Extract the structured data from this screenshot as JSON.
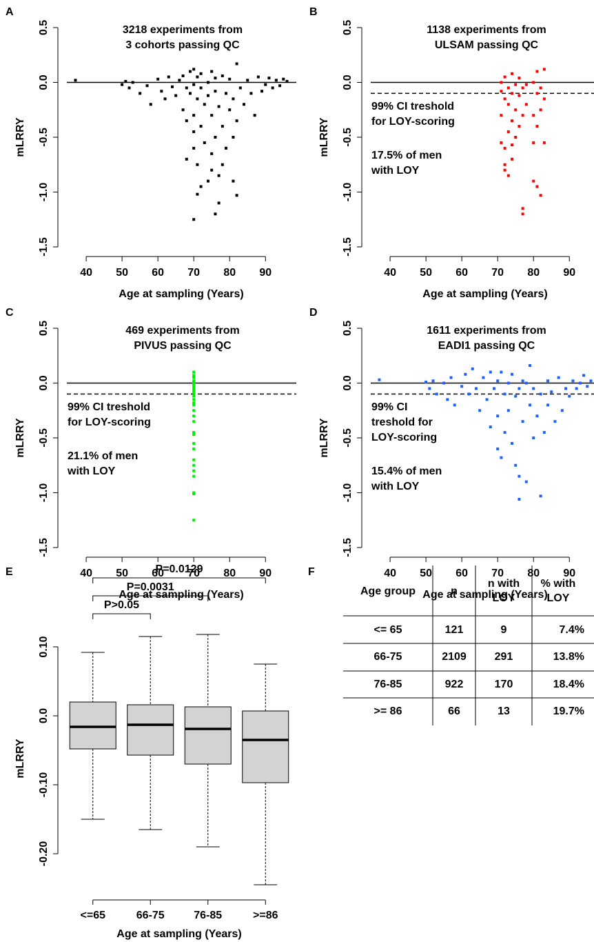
{
  "chart_data": [
    {
      "type": "scatter",
      "panel": "A",
      "title": [
        "3218 experiments from",
        "3 cohorts passing QC"
      ],
      "xlabel": "Age at sampling (Years)",
      "ylabel": "mLRRY",
      "color": "#000000",
      "xlim": [
        34.6,
        98.6
      ],
      "ylim": [
        -1.5,
        0.5
      ],
      "xticks": [
        40,
        50,
        60,
        70,
        80,
        90
      ],
      "yticks": [
        {
          "value": 0.5,
          "label": "0.5"
        },
        {
          "value": 0,
          "label": "0.0"
        },
        {
          "value": -0.5,
          "label": "-0.5"
        },
        {
          "value": -1,
          "label": "-1.0"
        },
        {
          "value": -1.5,
          "label": "-1.5"
        }
      ],
      "hline": 0,
      "annotations": [],
      "x": [
        37,
        50,
        51,
        52,
        53,
        55,
        57,
        58,
        60,
        61,
        62,
        63,
        64,
        65,
        66,
        67,
        67,
        68,
        68,
        69,
        69,
        70,
        70,
        70,
        70,
        70,
        71,
        71,
        71,
        72,
        72,
        72,
        73,
        73,
        74,
        74,
        74,
        75,
        75,
        75,
        76,
        76,
        76,
        77,
        77,
        78,
        78,
        79,
        79,
        80,
        80,
        81,
        81,
        82,
        82,
        83,
        84,
        85,
        86,
        87,
        88,
        89,
        90,
        91,
        92,
        93,
        94,
        95,
        96,
        71,
        76,
        77,
        82,
        70,
        81,
        68,
        72,
        75,
        78
      ],
      "y": [
        0.02,
        -0.02,
        0.01,
        -0.05,
        0,
        -0.1,
        -0.03,
        -0.2,
        0.03,
        -0.08,
        -0.15,
        0.05,
        -0.04,
        -0.12,
        0.02,
        -0.25,
        0.06,
        -0.05,
        -0.35,
        0.1,
        -0.1,
        -0.6,
        -0.02,
        0.12,
        -0.3,
        -0.45,
        -0.15,
        0.05,
        -0.75,
        -0.05,
        -0.4,
        0.08,
        -0.2,
        -0.55,
        0,
        -0.12,
        -0.9,
        0.1,
        -0.3,
        -0.65,
        -0.08,
        -0.5,
        0.04,
        -0.22,
        -0.85,
        0.06,
        -0.4,
        -0.1,
        -0.6,
        0.03,
        -0.25,
        -0.15,
        -0.5,
        0.17,
        -0.35,
        -0.05,
        -0.2,
        0.02,
        -0.1,
        -0.3,
        0.05,
        -0.08,
        -0.02,
        0.04,
        -0.05,
        0.02,
        -0.03,
        0.03,
        0.01,
        -1.02,
        -1.2,
        -1.1,
        -1.03,
        -1.25,
        -0.9,
        -0.7,
        -0.95,
        -0.8,
        -0.75
      ]
    },
    {
      "type": "scatter",
      "panel": "B",
      "title": [
        "1138 experiments from",
        "ULSAM passing QC"
      ],
      "xlabel": "Age at sampling (Years)",
      "ylabel": "mLRRY",
      "color": "#ff0000",
      "xlim": [
        34.6,
        98.6
      ],
      "ylim": [
        -1.5,
        0.5
      ],
      "xticks": [
        40,
        50,
        60,
        70,
        80,
        90
      ],
      "yticks": [
        {
          "value": 0.5,
          "label": "0.5"
        },
        {
          "value": 0,
          "label": "0.0"
        },
        {
          "value": -0.5,
          "label": "-0.5"
        },
        {
          "value": -1,
          "label": "-1.0"
        },
        {
          "value": -1.5,
          "label": "-1.5"
        }
      ],
      "hline": 0,
      "threshold": -0.1,
      "annotations": [
        [
          "99% CI treshold",
          "for LOY-scoring"
        ],
        [
          "17.5% of men",
          "with LOY"
        ]
      ],
      "x": [
        71,
        71,
        71,
        71,
        72,
        72,
        72,
        72,
        73,
        73,
        73,
        73,
        74,
        74,
        74,
        74,
        75,
        75,
        75,
        76,
        76,
        76,
        77,
        77,
        77,
        77,
        78,
        78,
        80,
        80,
        80,
        80,
        81,
        81,
        81,
        81,
        82,
        82,
        82,
        83,
        83,
        83,
        72,
        74
      ],
      "y": [
        0,
        -0.08,
        -0.3,
        -0.55,
        0.05,
        -0.15,
        -0.6,
        -0.8,
        -0.05,
        -0.2,
        -0.45,
        -0.85,
        0.08,
        -0.1,
        -0.35,
        -0.7,
        -0.02,
        -0.25,
        -0.5,
        0.04,
        -0.12,
        -0.4,
        -0.05,
        -0.3,
        -1.2,
        -1.15,
        -0.02,
        -0.2,
        0,
        -0.3,
        -0.55,
        -0.9,
        0.1,
        -0.1,
        -0.4,
        -0.95,
        -0.05,
        -0.25,
        -1.03,
        0.12,
        -0.15,
        -0.55,
        -0.75,
        -0.57
      ]
    },
    {
      "type": "scatter",
      "panel": "C",
      "title": [
        "469 experiments from",
        "PIVUS passing QC"
      ],
      "xlabel": "Age at sampling (Years)",
      "ylabel": "mLRRY",
      "color": "#00ee00",
      "xlim": [
        34.6,
        98.6
      ],
      "ylim": [
        -1.5,
        0.5
      ],
      "xticks": [
        40,
        50,
        60,
        70,
        80,
        90
      ],
      "yticks": [
        {
          "value": 0.5,
          "label": "0.5"
        },
        {
          "value": 0,
          "label": "0.0"
        },
        {
          "value": -0.5,
          "label": "-0.5"
        },
        {
          "value": -1,
          "label": "-1.0"
        },
        {
          "value": -1.5,
          "label": "-1.5"
        }
      ],
      "hline": 0,
      "threshold": -0.1,
      "annotations": [
        [
          "99% CI treshold",
          "for LOY-scoring"
        ],
        [
          "21.1% of men",
          "with LOY"
        ]
      ],
      "x": [
        70,
        70,
        70,
        70,
        70,
        70,
        70,
        70,
        70,
        70,
        70,
        70,
        70,
        70,
        70,
        70,
        70,
        70,
        70,
        70,
        70,
        70,
        70,
        70,
        70,
        70,
        70,
        70
      ],
      "y": [
        0.1,
        0.07,
        0.05,
        0.02,
        0,
        -0.02,
        -0.04,
        -0.06,
        -0.08,
        -0.1,
        -0.12,
        -0.15,
        -0.18,
        -0.2,
        -0.25,
        -0.3,
        -0.35,
        -0.45,
        -0.47,
        -0.55,
        -0.6,
        -0.7,
        -0.75,
        -0.8,
        -0.85,
        -1,
        -1.01,
        -1.25
      ]
    },
    {
      "type": "scatter",
      "panel": "D",
      "title": [
        "1611 experiments from",
        "EADI1 passing QC"
      ],
      "xlabel": "Age at sampling (Years)",
      "ylabel": "mLRRY",
      "color": "#1f5fff",
      "xlim": [
        34.6,
        98.6
      ],
      "ylim": [
        -1.5,
        0.5
      ],
      "xticks": [
        40,
        50,
        60,
        70,
        80,
        90
      ],
      "yticks": [
        {
          "value": 0.5,
          "label": "0.5"
        },
        {
          "value": 0,
          "label": "0.0"
        },
        {
          "value": -0.5,
          "label": "-0.5"
        },
        {
          "value": -1,
          "label": "-1.0"
        },
        {
          "value": -1.5,
          "label": "-1.5"
        }
      ],
      "hline": 0,
      "threshold": -0.1,
      "annotations": [
        [
          "99% CI",
          "treshold for",
          "LOY-scoring"
        ],
        [
          "15.4% of men",
          "with LOY"
        ]
      ],
      "x": [
        37,
        50,
        51,
        52,
        53,
        55,
        56,
        57,
        58,
        60,
        61,
        62,
        63,
        64,
        65,
        66,
        67,
        68,
        68,
        69,
        70,
        70,
        70,
        71,
        71,
        72,
        72,
        73,
        73,
        74,
        74,
        75,
        75,
        76,
        76,
        76,
        77,
        77,
        78,
        78,
        79,
        79,
        80,
        80,
        81,
        82,
        82,
        83,
        84,
        84,
        85,
        86,
        87,
        88,
        89,
        90,
        91,
        92,
        93,
        94,
        95,
        96
      ],
      "y": [
        0.03,
        0.01,
        -0.05,
        0.02,
        -0.1,
        0,
        -0.15,
        0.05,
        -0.2,
        -0.03,
        0.08,
        -0.1,
        0.13,
        -0.05,
        -0.25,
        0.05,
        -0.15,
        -0.4,
        0.1,
        -0.05,
        -0.3,
        0.02,
        -0.6,
        -0.68,
        0.1,
        -0.1,
        -0.45,
        0,
        -0.25,
        -0.55,
        0.08,
        -0.12,
        -0.75,
        -0.05,
        -0.85,
        -1.06,
        0.02,
        -0.35,
        -0.9,
        0,
        0.16,
        -0.2,
        -0.5,
        -0.05,
        -0.3,
        -1.03,
        -0.1,
        -0.45,
        0.02,
        -0.2,
        -0.08,
        -0.35,
        0.05,
        -0.25,
        -0.05,
        -0.12,
        0.02,
        -0.05,
        0,
        0.07,
        -0.03,
        0.02
      ]
    },
    {
      "type": "box",
      "panel": "E",
      "xlabel": "Age at sampling (Years)",
      "ylabel": "mLRRY",
      "color": "#d3d3d3",
      "categories": [
        "<=65",
        "66-75",
        "76-85",
        ">=86"
      ],
      "ylim": [
        -0.255,
        0.133
      ],
      "yticks": [
        {
          "value": 0.1,
          "label": "0.10"
        },
        {
          "value": 0,
          "label": "0.0"
        },
        {
          "value": -0.1,
          "label": "-0.10"
        },
        {
          "value": -0.2,
          "label": "-0.20"
        }
      ],
      "boxes": [
        {
          "whislo": -0.15,
          "q1": -0.048,
          "med": -0.016,
          "q3": 0.02,
          "whishi": 0.092
        },
        {
          "whislo": -0.165,
          "q1": -0.057,
          "med": -0.013,
          "q3": 0.016,
          "whishi": 0.115
        },
        {
          "whislo": -0.19,
          "q1": -0.07,
          "med": -0.019,
          "q3": 0.013,
          "whishi": 0.118
        },
        {
          "whislo": -0.245,
          "q1": -0.097,
          "med": -0.035,
          "q3": 0.007,
          "whishi": 0.075
        }
      ],
      "comparisons": [
        {
          "from": 0,
          "to": 3,
          "label": "P=0.0129"
        },
        {
          "from": 0,
          "to": 2,
          "label": "P=0.0031"
        },
        {
          "from": 0,
          "to": 1,
          "label": "P>0.05"
        }
      ]
    }
  ],
  "table": {
    "panel": "F",
    "header": [
      "Age group",
      "n",
      "n with LOY",
      "% with LOY"
    ],
    "rows": [
      [
        "<= 65",
        "121",
        "9",
        "7.4%"
      ],
      [
        "66-75",
        "2109",
        "291",
        "13.8%"
      ],
      [
        "76-85",
        "922",
        "170",
        "18.4%"
      ],
      [
        ">= 86",
        "66",
        "13",
        "19.7%"
      ]
    ]
  }
}
